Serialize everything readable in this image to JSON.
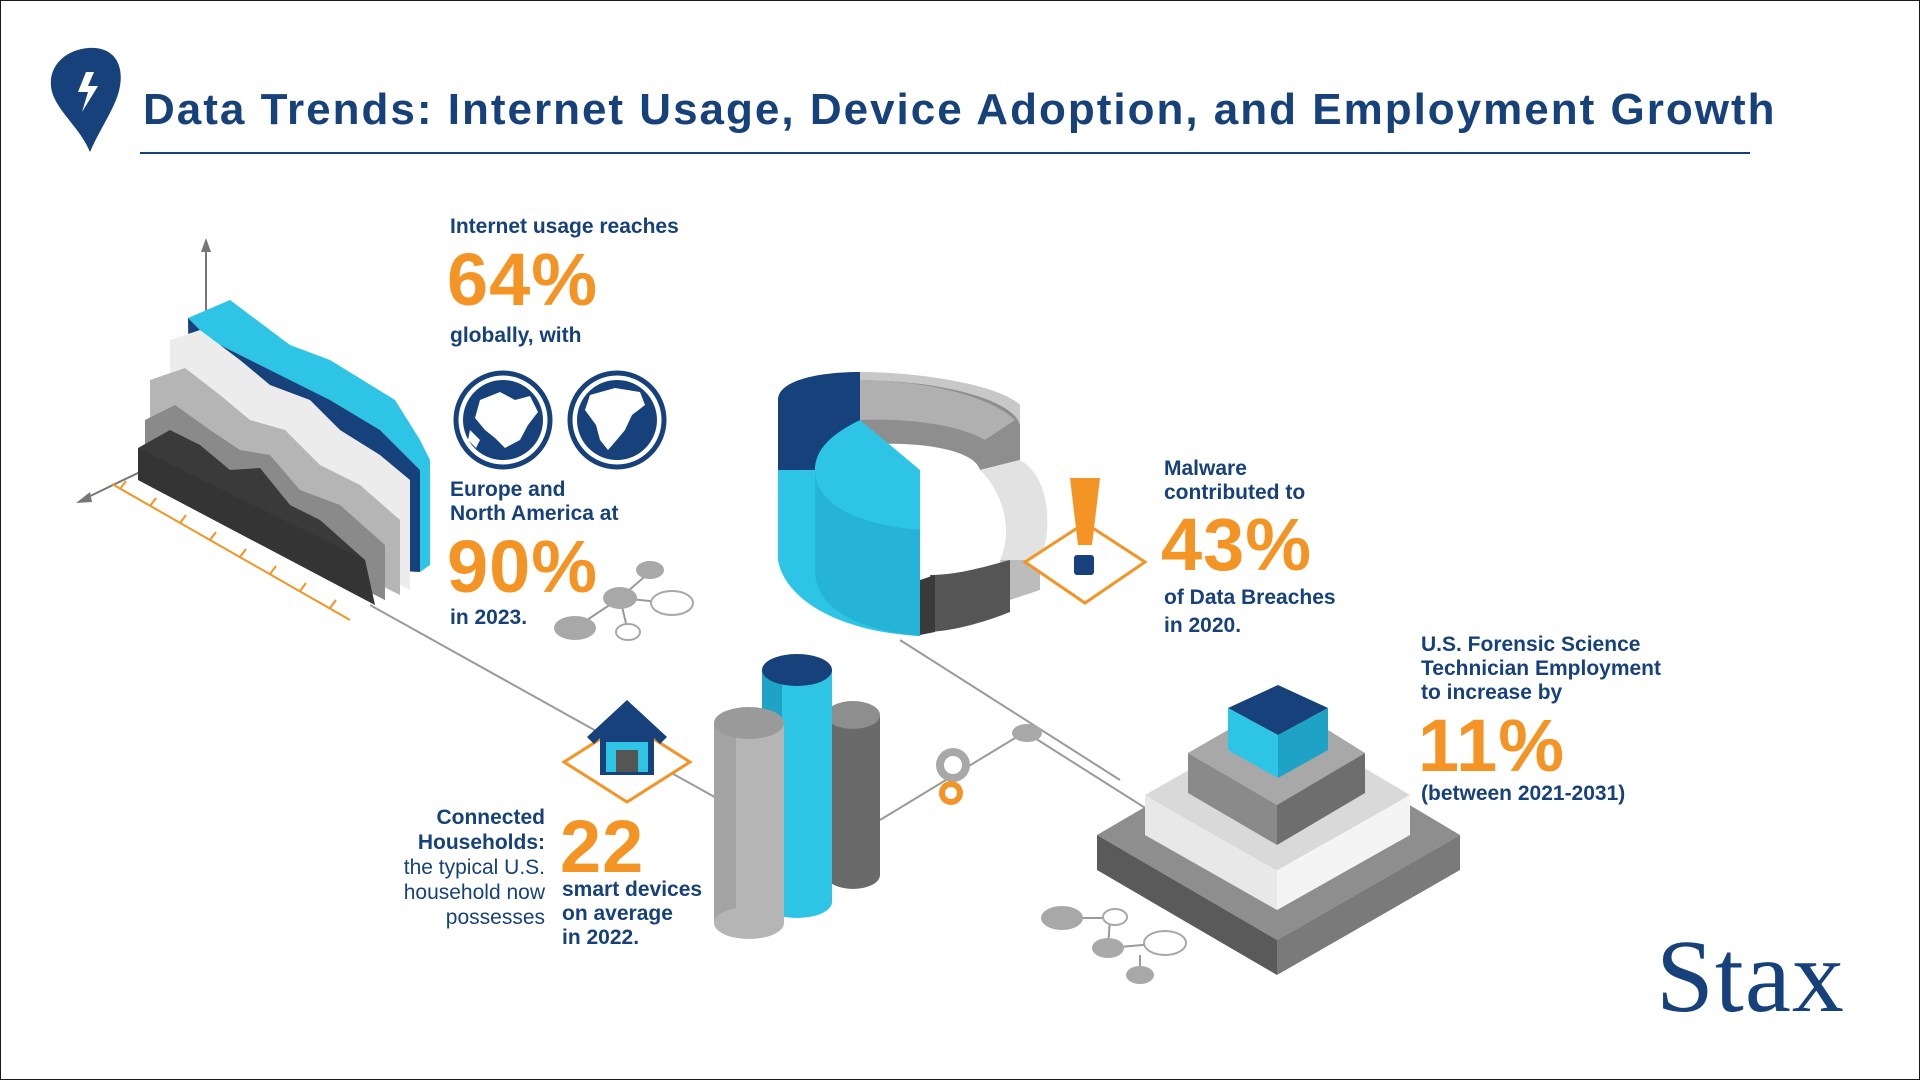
{
  "header": {
    "title": "Data Trends: Internet Usage, Device Adoption, and Employment Growth",
    "logo_icon": "lightning-badge-icon"
  },
  "internet": {
    "line1": "Internet usage reaches",
    "stat1": "64%",
    "line2": "globally, with",
    "globe_icons": [
      "europe-globe-icon",
      "north-america-globe-icon"
    ],
    "line3a": "Europe and",
    "line3b": "North America at",
    "stat2": "90%",
    "line4": "in 2023."
  },
  "malware": {
    "line1": "Malware",
    "line2": "contributed to",
    "stat": "43%",
    "line3": "of Data Breaches",
    "line4": "in 2020.",
    "icon": "warning-exclamation-icon"
  },
  "households": {
    "label1": "Connected",
    "label2": "Households:",
    "label3": "the typical U.S.",
    "label4": "household now",
    "label5": "possesses",
    "stat": "22",
    "line1": "smart devices",
    "line2": "on average",
    "line3": "in 2022.",
    "icon": "house-icon"
  },
  "forensic": {
    "line1": "U.S. Forensic Science",
    "line2": "Technician Employment",
    "line3": "to increase by",
    "stat": "11%",
    "line4": "(between 2021-2031)"
  },
  "brand": {
    "name": "Stax"
  },
  "colors": {
    "navy": "#16417a",
    "orange": "#f39425",
    "cyan": "#2ec4e6",
    "dark_gray": "#3c3c3c",
    "mid_gray": "#8e8e8e",
    "light_gray": "#d9d9d9"
  }
}
